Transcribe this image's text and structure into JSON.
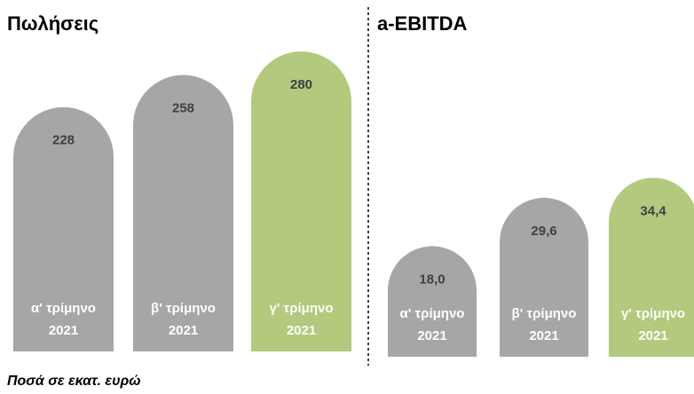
{
  "chart_data": [
    {
      "type": "bar",
      "title": "Πωλήσεις",
      "categories": [
        [
          "α' τρίμηνο",
          "2021"
        ],
        [
          "β' τρίμηνο",
          "2021"
        ],
        [
          "γ' τρίμηνο",
          "2021"
        ]
      ],
      "values": [
        228,
        258,
        280
      ],
      "colors": [
        "#a6a6a6",
        "#a6a6a6",
        "#b3c97d"
      ]
    },
    {
      "type": "bar",
      "title": "a-EBITDA",
      "categories": [
        [
          "α' τρίμηνο",
          "2021"
        ],
        [
          "β' τρίμηνο",
          "2021"
        ],
        [
          "γ' τρίμηνο",
          "2021"
        ]
      ],
      "values": [
        18.0,
        29.6,
        34.4
      ],
      "value_labels": [
        "18,0",
        "29,6",
        "34,4"
      ],
      "colors": [
        "#a6a6a6",
        "#a6a6a6",
        "#b3c97d"
      ]
    }
  ],
  "note": "Ποσά σε εκατ. ευρώ"
}
